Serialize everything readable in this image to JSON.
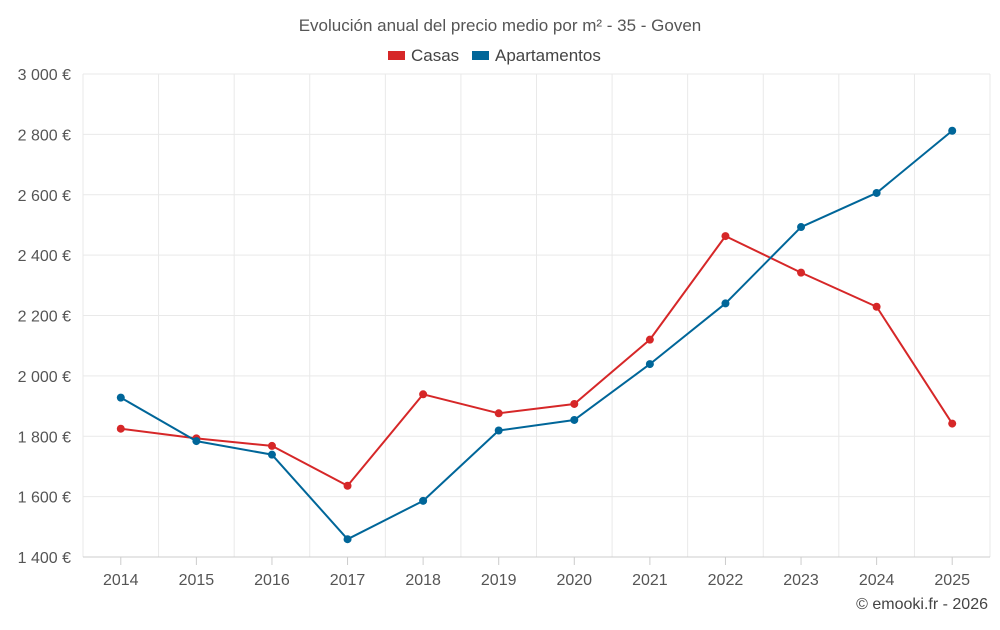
{
  "chart_data": {
    "type": "line",
    "title": "Evolución anual del precio medio por m² - 35 - Goven",
    "categories": [
      "2014",
      "2015",
      "2016",
      "2017",
      "2018",
      "2019",
      "2020",
      "2021",
      "2022",
      "2023",
      "2024",
      "2025"
    ],
    "series": [
      {
        "name": "Casas",
        "color": "#d62728",
        "values": [
          1825,
          1793,
          1768,
          1636,
          1939,
          1876,
          1907,
          2120,
          2463,
          2342,
          2229,
          1842
        ]
      },
      {
        "name": "Apartamentos",
        "color": "#006699",
        "values": [
          1928,
          1784,
          1739,
          1459,
          1586,
          1819,
          1854,
          2039,
          2240,
          2493,
          2606,
          2812
        ]
      }
    ],
    "ylim": [
      1400,
      3000
    ],
    "yticks": [
      1400,
      1600,
      1800,
      2000,
      2200,
      2400,
      2600,
      2800,
      3000
    ],
    "ytick_labels": [
      "1 400 €",
      "1 600 €",
      "1 800 €",
      "2 000 €",
      "2 200 €",
      "2 400 €",
      "2 600 €",
      "2 800 €",
      "3 000 €"
    ],
    "xlabel": "",
    "ylabel": "",
    "grid": true,
    "legend_position": "top-center"
  },
  "credit": "© emooki.fr - 2026"
}
